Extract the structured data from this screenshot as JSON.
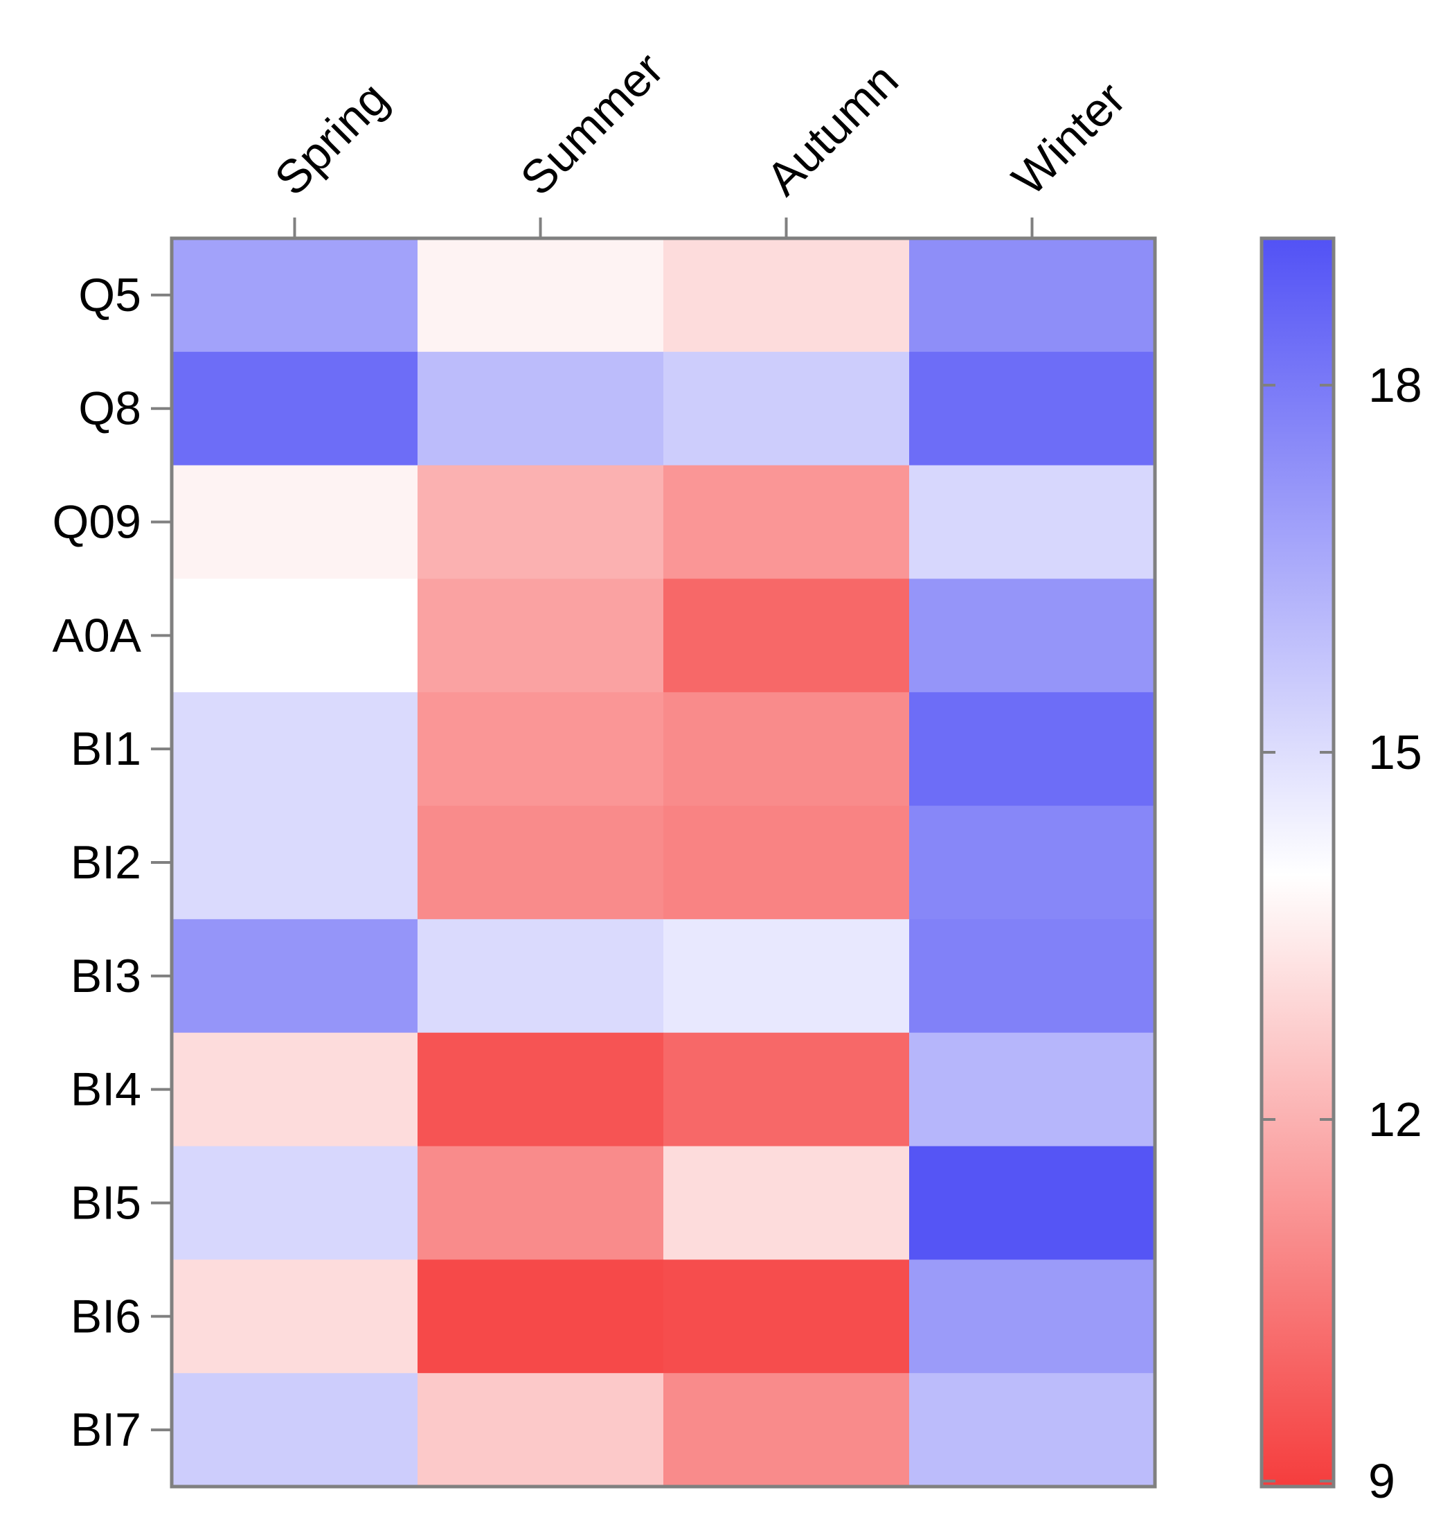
{
  "chart_data": {
    "type": "heatmap",
    "title": "",
    "xlabel": "",
    "ylabel": "",
    "columns": [
      "Spring",
      "Summer",
      "Autumn",
      "Winter"
    ],
    "rows": [
      "Q5",
      "Q8",
      "Q09",
      "A0A",
      "BI1",
      "BI2",
      "BI3",
      "BI4",
      "BI5",
      "BI6",
      "BI7"
    ],
    "values": [
      [
        16.8,
        13.7,
        13.1,
        17.4
      ],
      [
        18.4,
        16.0,
        15.5,
        18.4
      ],
      [
        13.7,
        12.0,
        11.3,
        15.2
      ],
      [
        14.0,
        11.6,
        10.1,
        17.2
      ],
      [
        15.1,
        11.3,
        11.0,
        18.4
      ],
      [
        15.1,
        11.0,
        10.8,
        17.6
      ],
      [
        17.2,
        15.1,
        14.7,
        17.8
      ],
      [
        13.1,
        9.6,
        10.1,
        16.2
      ],
      [
        15.2,
        11.0,
        13.1,
        19.1
      ],
      [
        13.1,
        9.3,
        9.4,
        17.0
      ],
      [
        15.5,
        12.6,
        11.0,
        16.0
      ]
    ],
    "colorbar": {
      "min": 9,
      "max": 19.2,
      "center": 14,
      "ticks": [
        9,
        12,
        15,
        18
      ],
      "tick_labels": [
        "9",
        "12",
        "15",
        "18"
      ],
      "low_color": "#f53d3d",
      "mid_color": "#ffffff",
      "high_color": "#5252f5"
    }
  }
}
